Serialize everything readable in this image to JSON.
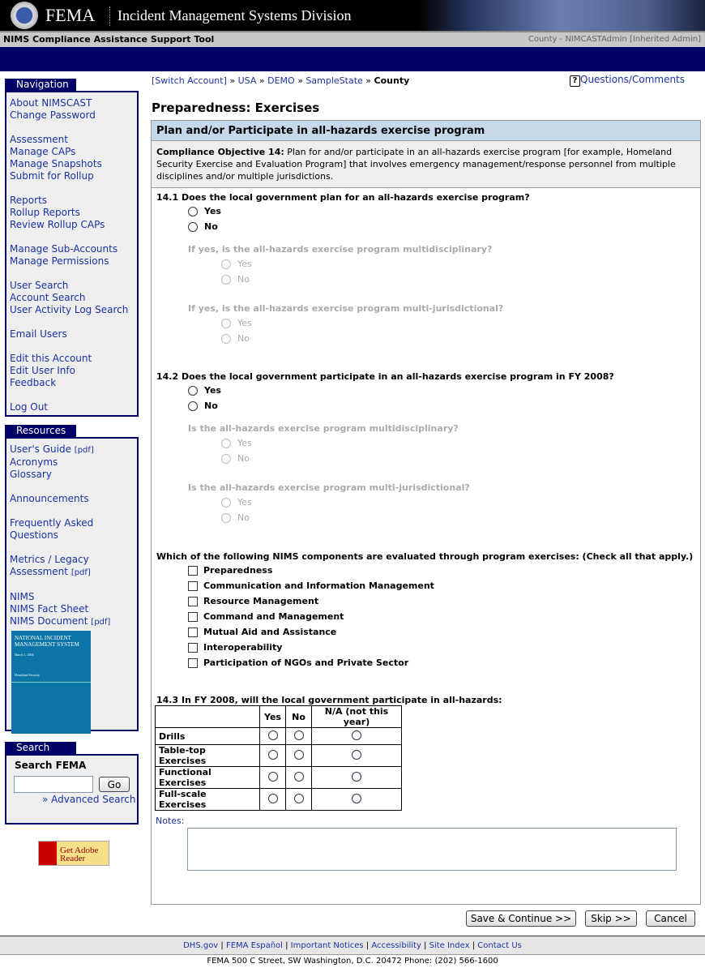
{
  "header": {
    "logo_text": "FEMA",
    "division": "Incident Management Systems Division",
    "app_name": "NIMS Compliance Assistance Support Tool",
    "user": "County - NIMCASTAdmin [Inherited Admin]"
  },
  "breadcrumb": {
    "switch": "[Switch Account]",
    "sep": "»",
    "items": [
      "USA",
      "DEMO",
      "SampleState"
    ],
    "current": "County"
  },
  "help": {
    "label": "Questions/Comments",
    "icon": "question-icon"
  },
  "navigation": {
    "title": "Navigation",
    "groups": [
      [
        "About NIMSCAST",
        "Change Password"
      ],
      [
        "Assessment",
        "Manage CAPs",
        "Manage Snapshots",
        "Submit for Rollup"
      ],
      [
        "Reports",
        "Rollup Reports",
        "Review Rollup CAPs"
      ],
      [
        "Manage Sub-Accounts",
        "Manage Permissions"
      ],
      [
        "User Search",
        "Account Search",
        "User Activity Log Search"
      ],
      [
        "Email Users"
      ],
      [
        "Edit this Account",
        "Edit User Info",
        "Feedback"
      ],
      [
        "Log Out"
      ]
    ]
  },
  "resources": {
    "title": "Resources",
    "groups": [
      [
        {
          "l": "User's Guide",
          "pdf": "[pdf]"
        },
        {
          "l": "Acronyms"
        },
        {
          "l": "Glossary"
        }
      ],
      [
        {
          "l": "Announcements"
        }
      ],
      [
        {
          "l": "Frequently Asked Questions"
        }
      ],
      [
        {
          "l": "Metrics / Legacy Assessment",
          "pdf": "[pdf]"
        }
      ],
      [
        {
          "l": "NIMS"
        },
        {
          "l": "NIMS Fact Sheet"
        },
        {
          "l": "NIMS Document",
          "pdf": "[pdf]"
        }
      ]
    ],
    "cover": {
      "title": "NATIONAL INCIDENT MANAGEMENT SYSTEM",
      "date": "March 1, 2004",
      "org": "Homeland Security"
    }
  },
  "search": {
    "title": "Search",
    "label": "Search FEMA",
    "value": "",
    "go": "Go",
    "advanced": "» Advanced Search"
  },
  "adobe": {
    "text": "Get Adobe Reader",
    "brand": "Adobe"
  },
  "page_title": "Preparedness: Exercises",
  "section": {
    "title": "Plan and/or Participate in all-hazards exercise program",
    "objective_label": "Compliance Objective 14:",
    "objective_text": " Plan for and/or participate in an all-hazards exercise program [for example, Homeland Security Exercise and Evaluation Program] that involves emergency management/response personnel from multiple disciplines and/or multiple jurisdictions."
  },
  "q141": {
    "text": "14.1 Does the local government plan for an all-hazards exercise program?",
    "sub1": "If yes, is the all-hazards exercise program multidisciplinary?",
    "sub2": "If yes, is the all-hazards exercise program multi-jurisdictional?"
  },
  "q142": {
    "text": "14.2 Does the local government participate in an all-hazards exercise program in FY 2008?",
    "sub1": "Is the all-hazards exercise program multidisciplinary?",
    "sub2": "Is the all-hazards exercise program multi-jurisdictional?"
  },
  "yes": "Yes",
  "no": "No",
  "components": {
    "text": "Which of the following NIMS components are evaluated through program exercises: (Check all that apply.)",
    "items": [
      "Preparedness",
      "Communication and Information Management",
      "Resource Management",
      "Command and Management",
      "Mutual Aid and Assistance",
      "Interoperability",
      "Participation of NGOs and Private Sector"
    ]
  },
  "q143": {
    "text": "14.3 In FY 2008, will the local government participate in all-hazards:",
    "cols": [
      "Yes",
      "No",
      "N/A (not this year)"
    ],
    "rows": [
      "Drills",
      "Table-top Exercises",
      "Functional Exercises",
      "Full-scale Exercises"
    ]
  },
  "notes": {
    "label": "Notes:",
    "value": ""
  },
  "buttons": {
    "save": "Save & Continue >>",
    "skip": "Skip >>",
    "cancel": "Cancel"
  },
  "footer": {
    "links": [
      "DHS.gov",
      "FEMA Español",
      "Important Notices",
      "Accessibility",
      "Site Index",
      "Contact Us"
    ],
    "address": "FEMA 500 C Street, SW Washington, D.C. 20472 Phone: (202) 566-1600"
  }
}
